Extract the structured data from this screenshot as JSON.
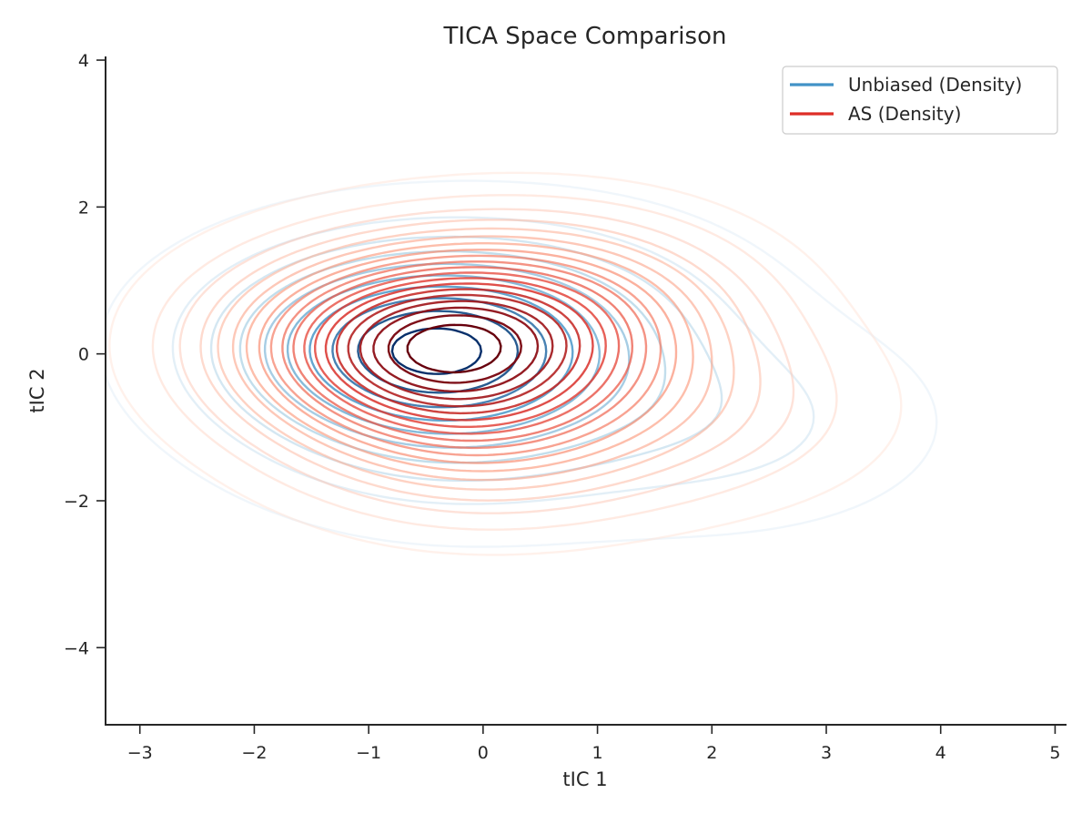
{
  "chart_data": {
    "type": "contour",
    "title": "TICA Space Comparison",
    "xlabel": "tIC 1",
    "ylabel": "tIC 2",
    "xlim": [
      -3.3,
      5.1
    ],
    "ylim": [
      -5.05,
      4.05
    ],
    "x_ticks": [
      -3,
      -2,
      -1,
      0,
      1,
      2,
      3,
      4,
      5
    ],
    "y_ticks": [
      -4,
      -2,
      0,
      2,
      4
    ],
    "x_tick_labels": [
      "−3",
      "−2",
      "−1",
      "0",
      "1",
      "2",
      "3",
      "4",
      "5"
    ],
    "y_tick_labels": [
      "−4",
      "−2",
      "0",
      "2",
      "4"
    ],
    "grid": false,
    "legend_position": "top-right",
    "legend": [
      "Unbiased (Density)",
      "AS (Density)"
    ],
    "series": [
      {
        "name": "Unbiased (Density)",
        "color": "#4292c6",
        "colormap": "Blues",
        "levels": 10,
        "peaks": [
          {
            "x": -0.65,
            "y": 0.15,
            "weight": 1.0
          },
          {
            "x": 0.6,
            "y": 0.5,
            "weight": 0.3
          },
          {
            "x": -0.2,
            "y": -0.9,
            "weight": 0.35
          },
          {
            "x": 2.1,
            "y": -0.95,
            "weight": 0.22
          }
        ]
      },
      {
        "name": "AS (Density)",
        "color": "#de2d26",
        "colormap": "Reds",
        "levels": 20,
        "peaks": [
          {
            "x": -0.6,
            "y": 0.15,
            "weight": 1.0
          },
          {
            "x": 0.7,
            "y": 0.6,
            "weight": 0.45
          },
          {
            "x": 0.0,
            "y": -1.0,
            "weight": 0.4
          },
          {
            "x": 1.9,
            "y": -0.8,
            "weight": 0.18
          }
        ]
      }
    ]
  }
}
